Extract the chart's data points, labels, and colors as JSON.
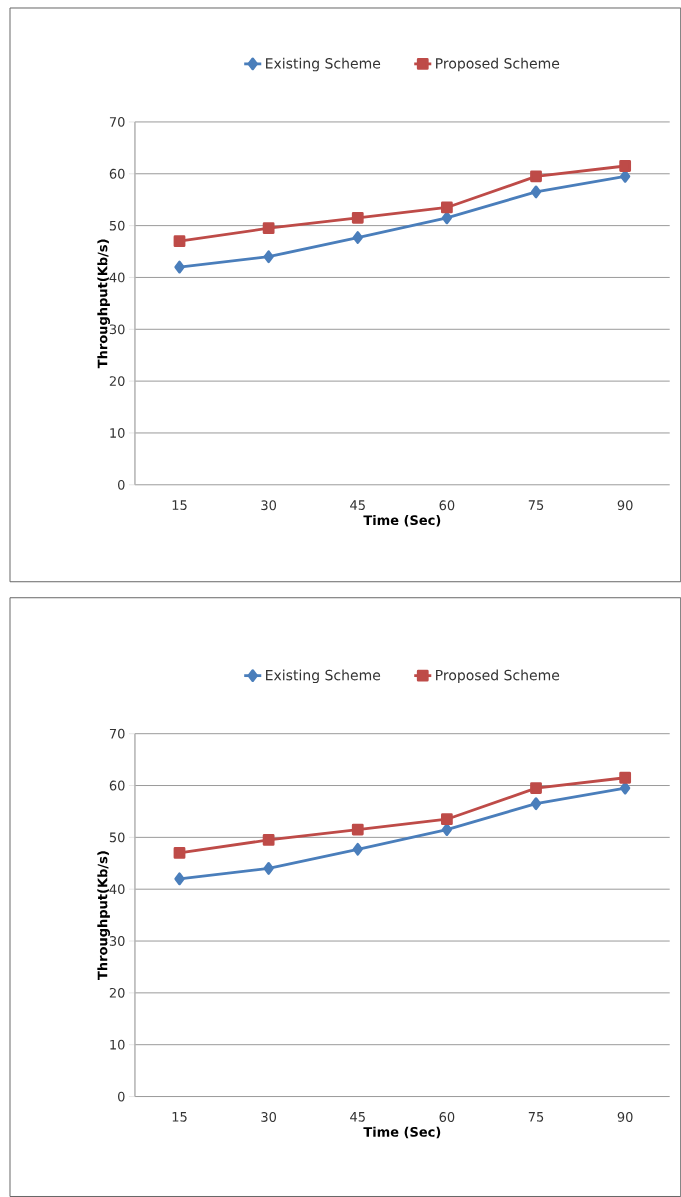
{
  "chart_data": [
    {
      "type": "line",
      "xlabel": "Time (Sec)",
      "ylabel": "Throughput(Kb/s)",
      "categories": [
        "15",
        "30",
        "45",
        "60",
        "75",
        "90"
      ],
      "series": [
        {
          "name": "Existing Scheme",
          "color": "#4a7ebb",
          "marker": "diamond",
          "values": [
            42,
            44,
            47.7,
            51.5,
            56.5,
            59.5
          ]
        },
        {
          "name": "Proposed Scheme",
          "color": "#be4b48",
          "marker": "square",
          "values": [
            47,
            49.5,
            51.5,
            53.5,
            59.5,
            61.5
          ]
        }
      ],
      "ylim": [
        0,
        70
      ],
      "yticks": [
        0,
        10,
        20,
        30,
        40,
        50,
        60,
        70
      ],
      "grid": "y",
      "legend": "top",
      "line_style": "solid"
    },
    {
      "type": "line",
      "xlabel": "Time (Sec)",
      "ylabel": "Throughput(Kb/s)",
      "categories": [
        "15",
        "30",
        "45",
        "60",
        "75",
        "90"
      ],
      "series": [
        {
          "name": "Existing Scheme",
          "color": "#4a7ebb",
          "marker": "diamond",
          "values": [
            42,
            44,
            47.7,
            51.5,
            56.5,
            59.5
          ]
        },
        {
          "name": "Proposed Scheme",
          "color": "#be4b48",
          "marker": "square",
          "values": [
            47,
            49.5,
            51.5,
            53.5,
            59.5,
            61.5
          ]
        }
      ],
      "ylim": [
        0,
        70
      ],
      "yticks": [
        0,
        10,
        20,
        30,
        40,
        50,
        60,
        70
      ],
      "grid": "y",
      "legend": "top",
      "line_style": "solid"
    }
  ]
}
